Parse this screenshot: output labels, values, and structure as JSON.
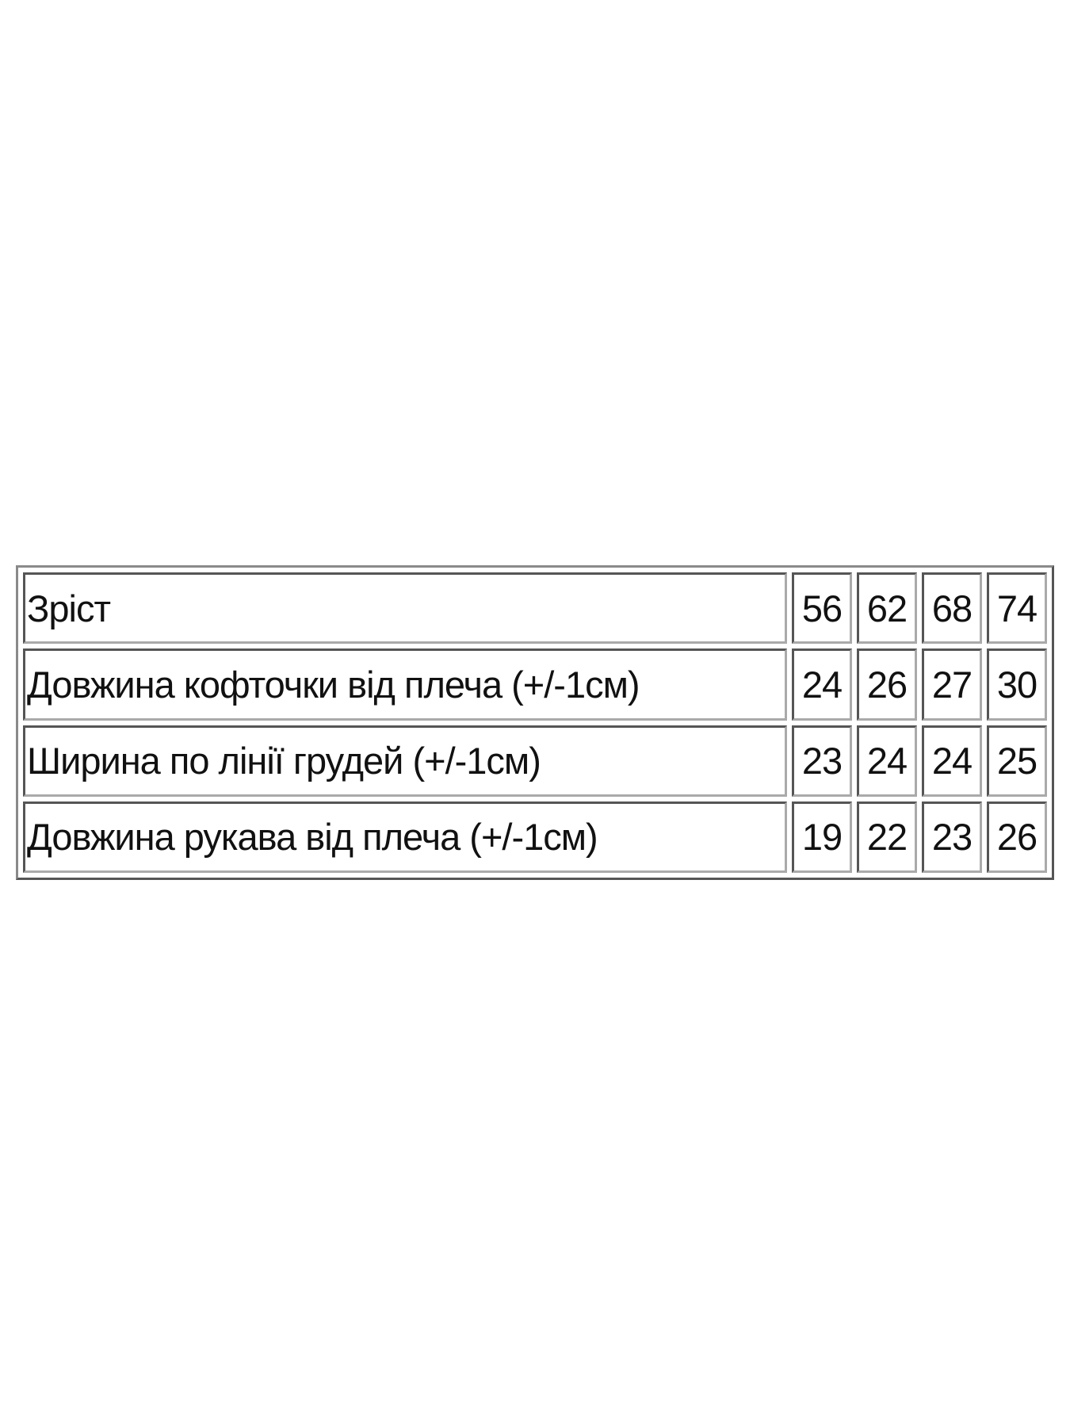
{
  "size_table": {
    "rows": [
      {
        "label": "Зріст",
        "values": [
          "56",
          "62",
          "68",
          "74"
        ]
      },
      {
        "label": "Довжина кофточки від плеча (+/-1см)",
        "values": [
          "24",
          "26",
          "27",
          "30"
        ]
      },
      {
        "label": "Ширина по лінії грудей (+/-1см)",
        "values": [
          "23",
          "24",
          "24",
          "25"
        ]
      },
      {
        "label": "Довжина рукава від плеча (+/-1см)",
        "values": [
          "19",
          "22",
          "23",
          "26"
        ]
      }
    ]
  }
}
